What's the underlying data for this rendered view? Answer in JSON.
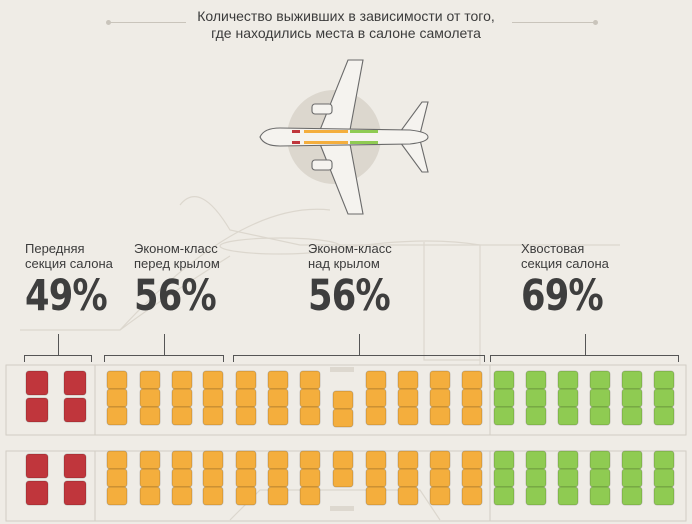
{
  "title": {
    "line1": "Количество выживших в зависимости от того,",
    "line2": "где находились места в салоне самолета"
  },
  "sections": [
    {
      "label": "Передняя\nсекция салона",
      "percent": "49%",
      "color": "#c0363c"
    },
    {
      "label": "Эконом-класс\nперед крылом",
      "percent": "56%",
      "color": "#f4ae3d"
    },
    {
      "label": "Эконом-класс\nнад крылом",
      "percent": "56%",
      "color": "#f4ae3d"
    },
    {
      "label": "Хвостовая\nсекция салона",
      "percent": "69%",
      "color": "#8fcb52"
    }
  ],
  "colors": {
    "front": "#c0363c",
    "economy": "#f4ae3d",
    "tail": "#8fcb52",
    "background": "#efece6"
  },
  "icons": [
    "airplane-icon"
  ]
}
